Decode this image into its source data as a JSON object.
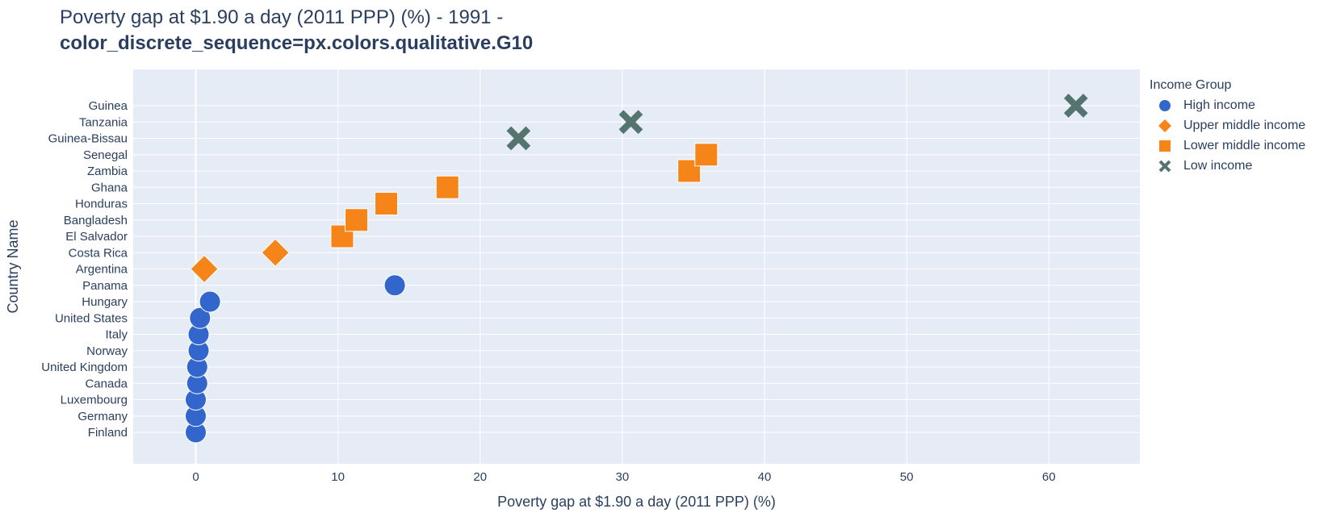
{
  "title": {
    "line1": "Poverty gap at $1.90 a day (2011 PPP) (%) - 1991 -",
    "line2": "color_discrete_sequence=px.colors.qualitative.G10"
  },
  "legend": {
    "title": "Income Group",
    "items": [
      {
        "name": "High income",
        "color": "#3366CC",
        "symbol": "circle"
      },
      {
        "name": "Upper middle income",
        "color": "#F58518",
        "symbol": "diamond"
      },
      {
        "name": "Lower middle income",
        "color": "#F58518",
        "symbol": "square"
      },
      {
        "name": "Low income",
        "color": "#54746F",
        "symbol": "x"
      }
    ]
  },
  "chart_data": {
    "type": "scatter",
    "xlabel": "Poverty gap at $1.90 a day (2011 PPP) (%)",
    "ylabel": "Country Name",
    "xlim": [
      -4.4,
      66.4
    ],
    "xticks": [
      0,
      10,
      20,
      30,
      40,
      50,
      60
    ],
    "grid": true,
    "legend_position": "top-right",
    "categories": [
      "Finland",
      "Germany",
      "Luxembourg",
      "Canada",
      "United Kingdom",
      "Norway",
      "Italy",
      "United States",
      "Hungary",
      "Panama",
      "Argentina",
      "Costa Rica",
      "El Salvador",
      "Bangladesh",
      "Honduras",
      "Ghana",
      "Zambia",
      "Senegal",
      "Guinea-Bissau",
      "Tanzania",
      "Guinea"
    ],
    "series": [
      {
        "name": "High income",
        "points": [
          {
            "y": "Finland",
            "x": 0.0
          },
          {
            "y": "Germany",
            "x": 0.0
          },
          {
            "y": "Luxembourg",
            "x": 0.0
          },
          {
            "y": "Canada",
            "x": 0.1
          },
          {
            "y": "United Kingdom",
            "x": 0.1
          },
          {
            "y": "Norway",
            "x": 0.2
          },
          {
            "y": "Italy",
            "x": 0.2
          },
          {
            "y": "United States",
            "x": 0.3
          },
          {
            "y": "Hungary",
            "x": 1.0
          },
          {
            "y": "Panama",
            "x": 14.0
          }
        ]
      },
      {
        "name": "Upper middle income",
        "points": [
          {
            "y": "Argentina",
            "x": 0.6
          },
          {
            "y": "Costa Rica",
            "x": 5.6
          }
        ]
      },
      {
        "name": "Lower middle income",
        "points": [
          {
            "y": "El Salvador",
            "x": 10.3
          },
          {
            "y": "Bangladesh",
            "x": 11.3
          },
          {
            "y": "Honduras",
            "x": 13.4
          },
          {
            "y": "Ghana",
            "x": 17.7
          },
          {
            "y": "Zambia",
            "x": 34.7
          },
          {
            "y": "Senegal",
            "x": 35.9
          }
        ]
      },
      {
        "name": "Low income",
        "points": [
          {
            "y": "Guinea-Bissau",
            "x": 22.7
          },
          {
            "y": "Tanzania",
            "x": 30.6
          },
          {
            "y": "Guinea",
            "x": 61.9
          }
        ]
      }
    ]
  }
}
